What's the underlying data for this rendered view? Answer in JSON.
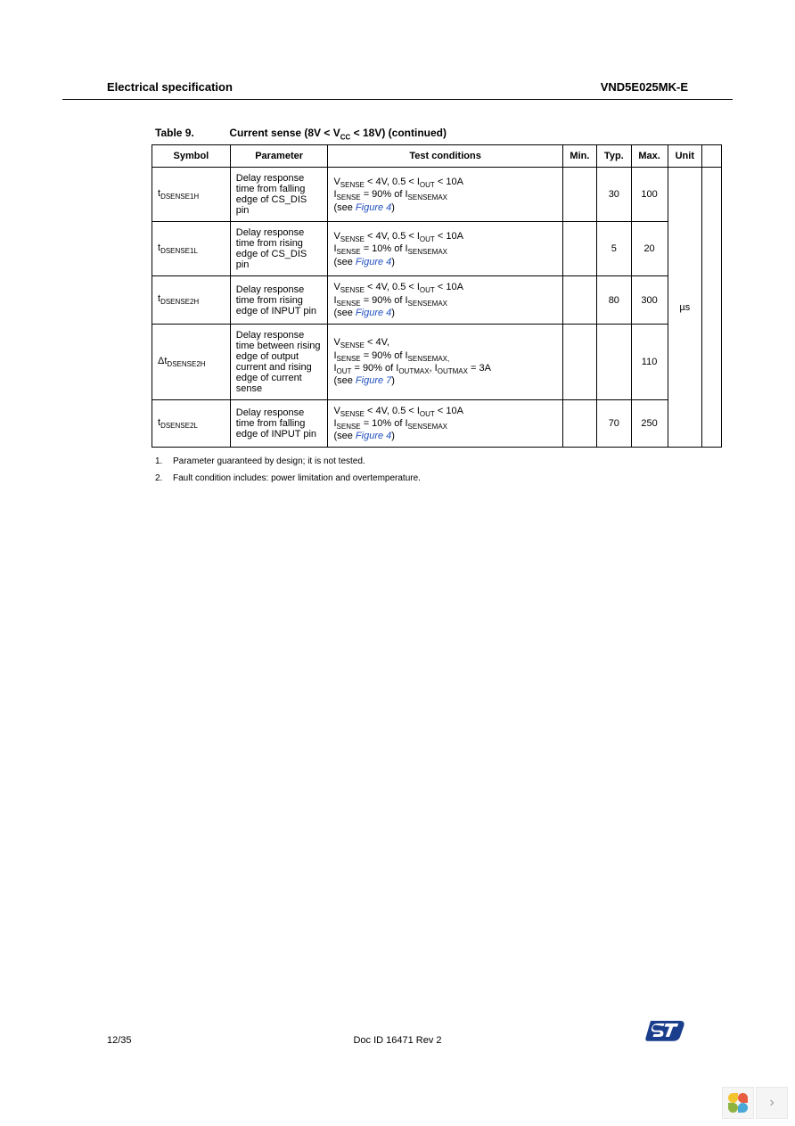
{
  "header": {
    "section_title": "Electrical specification",
    "part_number": "VND5E025MK-E"
  },
  "table": {
    "caption_prefix": "Table 9.",
    "caption_body": "Current sense (8V < V",
    "caption_sub": "CC",
    "caption_tail": " < 18V) (continued)",
    "columns": [
      "Symbol",
      "Parameter",
      "Test conditions",
      "Min.",
      "Typ.",
      "Max.",
      "Unit"
    ],
    "unit_merged": "µs",
    "rows": [
      {
        "symbol_main": "t",
        "symbol_sub": "DSENSE1H",
        "parameter": "Delay response time from falling edge of CS_DIS pin",
        "cond_l1a": "V",
        "cond_l1a_sub": "SENSE",
        "cond_l1b": " < 4V, 0.5 < I",
        "cond_l1b_sub": "OUT",
        "cond_l1c": " < 10A",
        "cond_l2a": "I",
        "cond_l2a_sub": "SENSE",
        "cond_l2b": " = 90% of I",
        "cond_l2b_sub": "SENSEMAX",
        "cond_l3a": "(see ",
        "cond_l3_link": "Figure 4",
        "cond_l3b": ")",
        "min": "",
        "typ": "30",
        "max": "100"
      },
      {
        "symbol_main": "t",
        "symbol_sub": "DSENSE1L",
        "parameter": "Delay response time from rising edge of CS_DIS pin",
        "cond_l1a": "V",
        "cond_l1a_sub": "SENSE",
        "cond_l1b": " < 4V, 0.5 < I",
        "cond_l1b_sub": "OUT",
        "cond_l1c": " < 10A",
        "cond_l2a": "I",
        "cond_l2a_sub": "SENSE",
        "cond_l2b": " = 10% of I",
        "cond_l2b_sub": "SENSEMAX",
        "cond_l3a": "(see ",
        "cond_l3_link": "Figure 4",
        "cond_l3b": ")",
        "min": "",
        "typ": "5",
        "max": "20"
      },
      {
        "symbol_main": "t",
        "symbol_sub": "DSENSE2H",
        "parameter": "Delay response time from rising edge of INPUT pin",
        "cond_l1a": "V",
        "cond_l1a_sub": "SENSE",
        "cond_l1b": " < 4V, 0.5 < I",
        "cond_l1b_sub": "OUT",
        "cond_l1c": " < 10A",
        "cond_l2a": "I",
        "cond_l2a_sub": "SENSE",
        "cond_l2b": " = 90% of I",
        "cond_l2b_sub": "SENSEMAX",
        "cond_l3a": "(see ",
        "cond_l3_link": "Figure 4",
        "cond_l3b": ")",
        "min": "",
        "typ": "80",
        "max": "300"
      },
      {
        "symbol_prefix": "Δ",
        "symbol_main": "t",
        "symbol_sub": "DSENSE2H",
        "parameter": "Delay response time between rising edge of output current and rising edge of current sense",
        "cond_l1a": "V",
        "cond_l1a_sub": "SENSE",
        "cond_l1b": " < 4V,",
        "cond_l1b_sub": "",
        "cond_l1c": "",
        "cond_l2a": "I",
        "cond_l2a_sub": "SENSE",
        "cond_l2b": " = 90% of I",
        "cond_l2b_sub": "SENSEMAX,",
        "cond_l2_extra_a": "I",
        "cond_l2_extra_a_sub": "OUT",
        "cond_l2_extra_b": " = 90% of I",
        "cond_l2_extra_b_sub": "OUTMAX",
        "cond_l2_extra_c": ", I",
        "cond_l2_extra_c_sub": "OUTMAX",
        "cond_l2_extra_d": " = 3A",
        "cond_l3a": "(see ",
        "cond_l3_link": "Figure 7",
        "cond_l3b": ")",
        "min": "",
        "typ": "",
        "max": "110"
      },
      {
        "symbol_main": "t",
        "symbol_sub": "DSENSE2L",
        "parameter": "Delay response time from falling edge of INPUT pin",
        "cond_l1a": "V",
        "cond_l1a_sub": "SENSE",
        "cond_l1b": " < 4V, 0.5 < I",
        "cond_l1b_sub": "OUT",
        "cond_l1c": " < 10A",
        "cond_l2a": "I",
        "cond_l2a_sub": "SENSE",
        "cond_l2b": " = 10% of I",
        "cond_l2b_sub": "SENSEMAX",
        "cond_l3a": "(see ",
        "cond_l3_link": "Figure 4",
        "cond_l3b": ")",
        "min": "",
        "typ": "70",
        "max": "250"
      }
    ]
  },
  "notes": [
    {
      "num": "1.",
      "text": "Parameter guaranteed by design; it is not tested."
    },
    {
      "num": "2.",
      "text": "Fault condition includes: power limitation and overtemperature."
    }
  ],
  "footer": {
    "page": "12/35",
    "docid": "Doc ID 16471 Rev 2"
  },
  "colors": {
    "link": "#2050c0",
    "logo_blue": "#1a3e8c",
    "logo_white": "#ffffff",
    "pinwheel": [
      "#f4c430",
      "#e85c41",
      "#8eb340",
      "#4aa8d8"
    ]
  }
}
